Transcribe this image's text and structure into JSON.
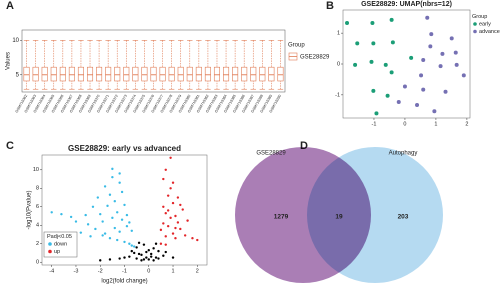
{
  "panel_labels": [
    "A",
    "B",
    "C",
    "D"
  ],
  "chart_data": [
    {
      "type": "box",
      "y_label": "Values",
      "legend_title": "Group",
      "categories": [
        "GSM715362",
        "GSM715363",
        "GSM715364",
        "GSM715365",
        "GSM715366",
        "GSM715367",
        "GSM715368",
        "GSM715369",
        "GSM715370",
        "GSM715371",
        "GSM715372",
        "GSM715373",
        "GSM715374",
        "GSM715375",
        "GSM715376",
        "GSM715377",
        "GSM715378",
        "GSM715379",
        "GSM715380",
        "GSM715381",
        "GSM715382",
        "GSM715383",
        "GSM715384",
        "GSM715385",
        "GSM715386",
        "GSM715387",
        "GSM715388",
        "GSM715389",
        "GSM715390"
      ],
      "series": [
        {
          "name": "GSE28829",
          "color": "#e07b54",
          "min": [
            2.9,
            2.9,
            2.9,
            2.9,
            2.9,
            2.9,
            2.9,
            2.9,
            2.9,
            2.9,
            2.9,
            2.9,
            2.9,
            2.9,
            2.9,
            2.9,
            2.9,
            2.9,
            2.9,
            2.9,
            2.9,
            2.9,
            2.9,
            2.9,
            2.9,
            2.9,
            2.9,
            2.9,
            2.9
          ],
          "q1": [
            4.1,
            4.1,
            4.1,
            4.1,
            4.1,
            4.1,
            4.1,
            4.1,
            4.1,
            4.1,
            4.1,
            4.1,
            4.1,
            4.1,
            4.1,
            4.1,
            4.1,
            4.1,
            4.1,
            4.1,
            4.1,
            4.1,
            4.1,
            4.1,
            4.1,
            4.1,
            4.1,
            4.1,
            4.1
          ],
          "median": [
            5,
            5,
            5,
            5,
            5,
            5,
            5,
            5,
            5,
            5,
            5,
            5,
            5,
            5,
            5,
            5,
            5,
            5,
            5,
            5,
            5,
            5,
            5,
            5,
            5,
            5,
            5,
            5,
            5
          ],
          "q3": [
            6.1,
            6.1,
            6.1,
            6.1,
            6.1,
            6.1,
            6.1,
            6.1,
            6.1,
            6.1,
            6.1,
            6.1,
            6.1,
            6.1,
            6.1,
            6.1,
            6.1,
            6.1,
            6.1,
            6.1,
            6.1,
            6.1,
            6.1,
            6.1,
            6.1,
            6.1,
            6.1,
            6.1,
            6.1
          ],
          "max": [
            10,
            10,
            10,
            10,
            10,
            10,
            10,
            10,
            10,
            10,
            10,
            10,
            10,
            10,
            10,
            10,
            10,
            10,
            10,
            10,
            10,
            10,
            10,
            10,
            10,
            10,
            10,
            10,
            10
          ]
        }
      ],
      "ylim": [
        2.5,
        11.5
      ],
      "yticks": [
        5,
        10
      ]
    },
    {
      "type": "scatter",
      "title": "GSE28829: UMAP(nbrs=12)",
      "legend_title": "Group",
      "series": [
        {
          "name": "early",
          "color": "#1b9e77",
          "x": [
            -1.87,
            -1.05,
            -0.43,
            -1.54,
            -1.02,
            -0.39,
            -1.61,
            -1.08,
            -0.43,
            -0.62,
            -1.02,
            -0.56,
            -0.92,
            0.2
          ],
          "y": [
            1.33,
            1.33,
            1.43,
            0.67,
            0.67,
            0.7,
            -0.03,
            0.07,
            -0.27,
            -0.03,
            -0.87,
            -1.03,
            -1.6,
            0.2
          ]
        },
        {
          "name": "advance",
          "color": "#7570b3",
          "x": [
            0.72,
            0.85,
            1.51,
            0.82,
            1.21,
            0.59,
            1.64,
            1.67,
            1.15,
            1.9,
            0.52,
            0.59,
            0,
            -0.2,
            0.39,
            0.95,
            1.31
          ],
          "y": [
            1.5,
            0.97,
            0.83,
            0.57,
            0.33,
            0.13,
            0.37,
            -0.03,
            -0.07,
            -0.37,
            -0.37,
            -0.83,
            -0.73,
            -1.23,
            -1.33,
            -1.53,
            -0.9
          ]
        }
      ],
      "xlim": [
        -2.0,
        2.1
      ],
      "ylim": [
        -1.75,
        1.75
      ],
      "xticks": [
        -1,
        0,
        1,
        2
      ],
      "yticks": [
        -1,
        0,
        1
      ]
    },
    {
      "type": "scatter",
      "title": "GSE28829: early vs advanced",
      "x_label": "log2(fold change)",
      "y_label": "-log10(Pvalue)",
      "legend_title": "Padj<0.05",
      "series": [
        {
          "name": "down",
          "color": "#39bbe6",
          "x": [
            -4.0,
            -3.6,
            -3.2,
            -3.0,
            -2.8,
            -2.6,
            -2.5,
            -2.3,
            -2.2,
            -2.1,
            -2.0,
            -1.9,
            -1.8,
            -1.8,
            -1.7,
            -1.6,
            -1.6,
            -1.5,
            -1.5,
            -1.4,
            -1.4,
            -1.3,
            -1.3,
            -1.2,
            -1.2,
            -1.1,
            -1.1,
            -1.0,
            -1.0,
            -0.9,
            -0.9,
            -0.8,
            -0.8,
            -0.7,
            -0.7,
            -0.6,
            -1.5,
            -2.4,
            -1.9,
            -1.2
          ],
          "y": [
            5.4,
            5.2,
            4.9,
            4.4,
            3.2,
            5.1,
            4.1,
            6.0,
            3.6,
            7.0,
            5.2,
            4.4,
            8.2,
            3.1,
            6.1,
            2.6,
            7.3,
            4.8,
            9.2,
            3.7,
            6.6,
            2.4,
            5.4,
            8.6,
            3.3,
            4.6,
            7.6,
            2.2,
            6.2,
            3.9,
            5.1,
            2.0,
            4.3,
            1.8,
            3.4,
            1.7,
            10.1,
            2.8,
            2.9,
            9.6
          ]
        },
        {
          "name": "up",
          "color": "#e3262a",
          "x": [
            0.5,
            0.5,
            0.6,
            0.6,
            0.7,
            0.7,
            0.8,
            0.8,
            0.9,
            0.9,
            1.0,
            1.0,
            1.1,
            1.1,
            1.2,
            1.2,
            1.3,
            1.4,
            1.5,
            1.6,
            0.6,
            0.7,
            0.9,
            1.0,
            1.3,
            1.8,
            2.0,
            0.8,
            1.1,
            0.7
          ],
          "y": [
            2.0,
            3.5,
            4.2,
            6.0,
            2.8,
            5.3,
            7.2,
            3.9,
            4.8,
            8.0,
            3.1,
            6.4,
            5.0,
            2.6,
            4.3,
            7.0,
            3.6,
            5.7,
            2.9,
            4.5,
            9.0,
            10.0,
            11.3,
            8.6,
            6.2,
            2.6,
            2.4,
            5.6,
            3.7,
            1.9
          ]
        },
        {
          "color": "#000000",
          "x": [
            -0.6,
            -0.5,
            -0.4,
            -0.3,
            -0.2,
            -0.1,
            0,
            0.1,
            0.2,
            0.3,
            0.4,
            -0.5,
            -0.3,
            -0.1,
            0.1,
            0.3,
            -0.8,
            -1.2,
            -1.6,
            0.6,
            -0.4,
            -0.2,
            0,
            0.2,
            0.4,
            -1.0,
            1.0,
            -0.7,
            0.7,
            -2.0
          ],
          "y": [
            1.0,
            1.6,
            2.1,
            0.8,
            1.9,
            0.5,
            0.3,
            0.6,
            1.5,
            2.0,
            1.2,
            0.4,
            0.2,
            1.1,
            0.9,
            0.5,
            0.6,
            0.4,
            0.3,
            0.7,
            0.9,
            0.3,
            1.3,
            0.2,
            0.4,
            0.5,
            0.5,
            1.2,
            1.1,
            0.2
          ]
        }
      ],
      "xlim": [
        -4.4,
        2.4
      ],
      "ylim": [
        -0.3,
        11.6
      ],
      "xticks": [
        -4,
        -3,
        -2,
        -1,
        0,
        1,
        2
      ],
      "yticks": [
        0,
        2,
        4,
        6,
        8,
        10
      ]
    },
    {
      "type": "venn",
      "sets": [
        {
          "name": "GSE28829",
          "color": "#9b67a8"
        },
        {
          "name": "Autophagy",
          "color": "#a8d4ef"
        }
      ],
      "values": [
        1279,
        19,
        203
      ]
    }
  ]
}
